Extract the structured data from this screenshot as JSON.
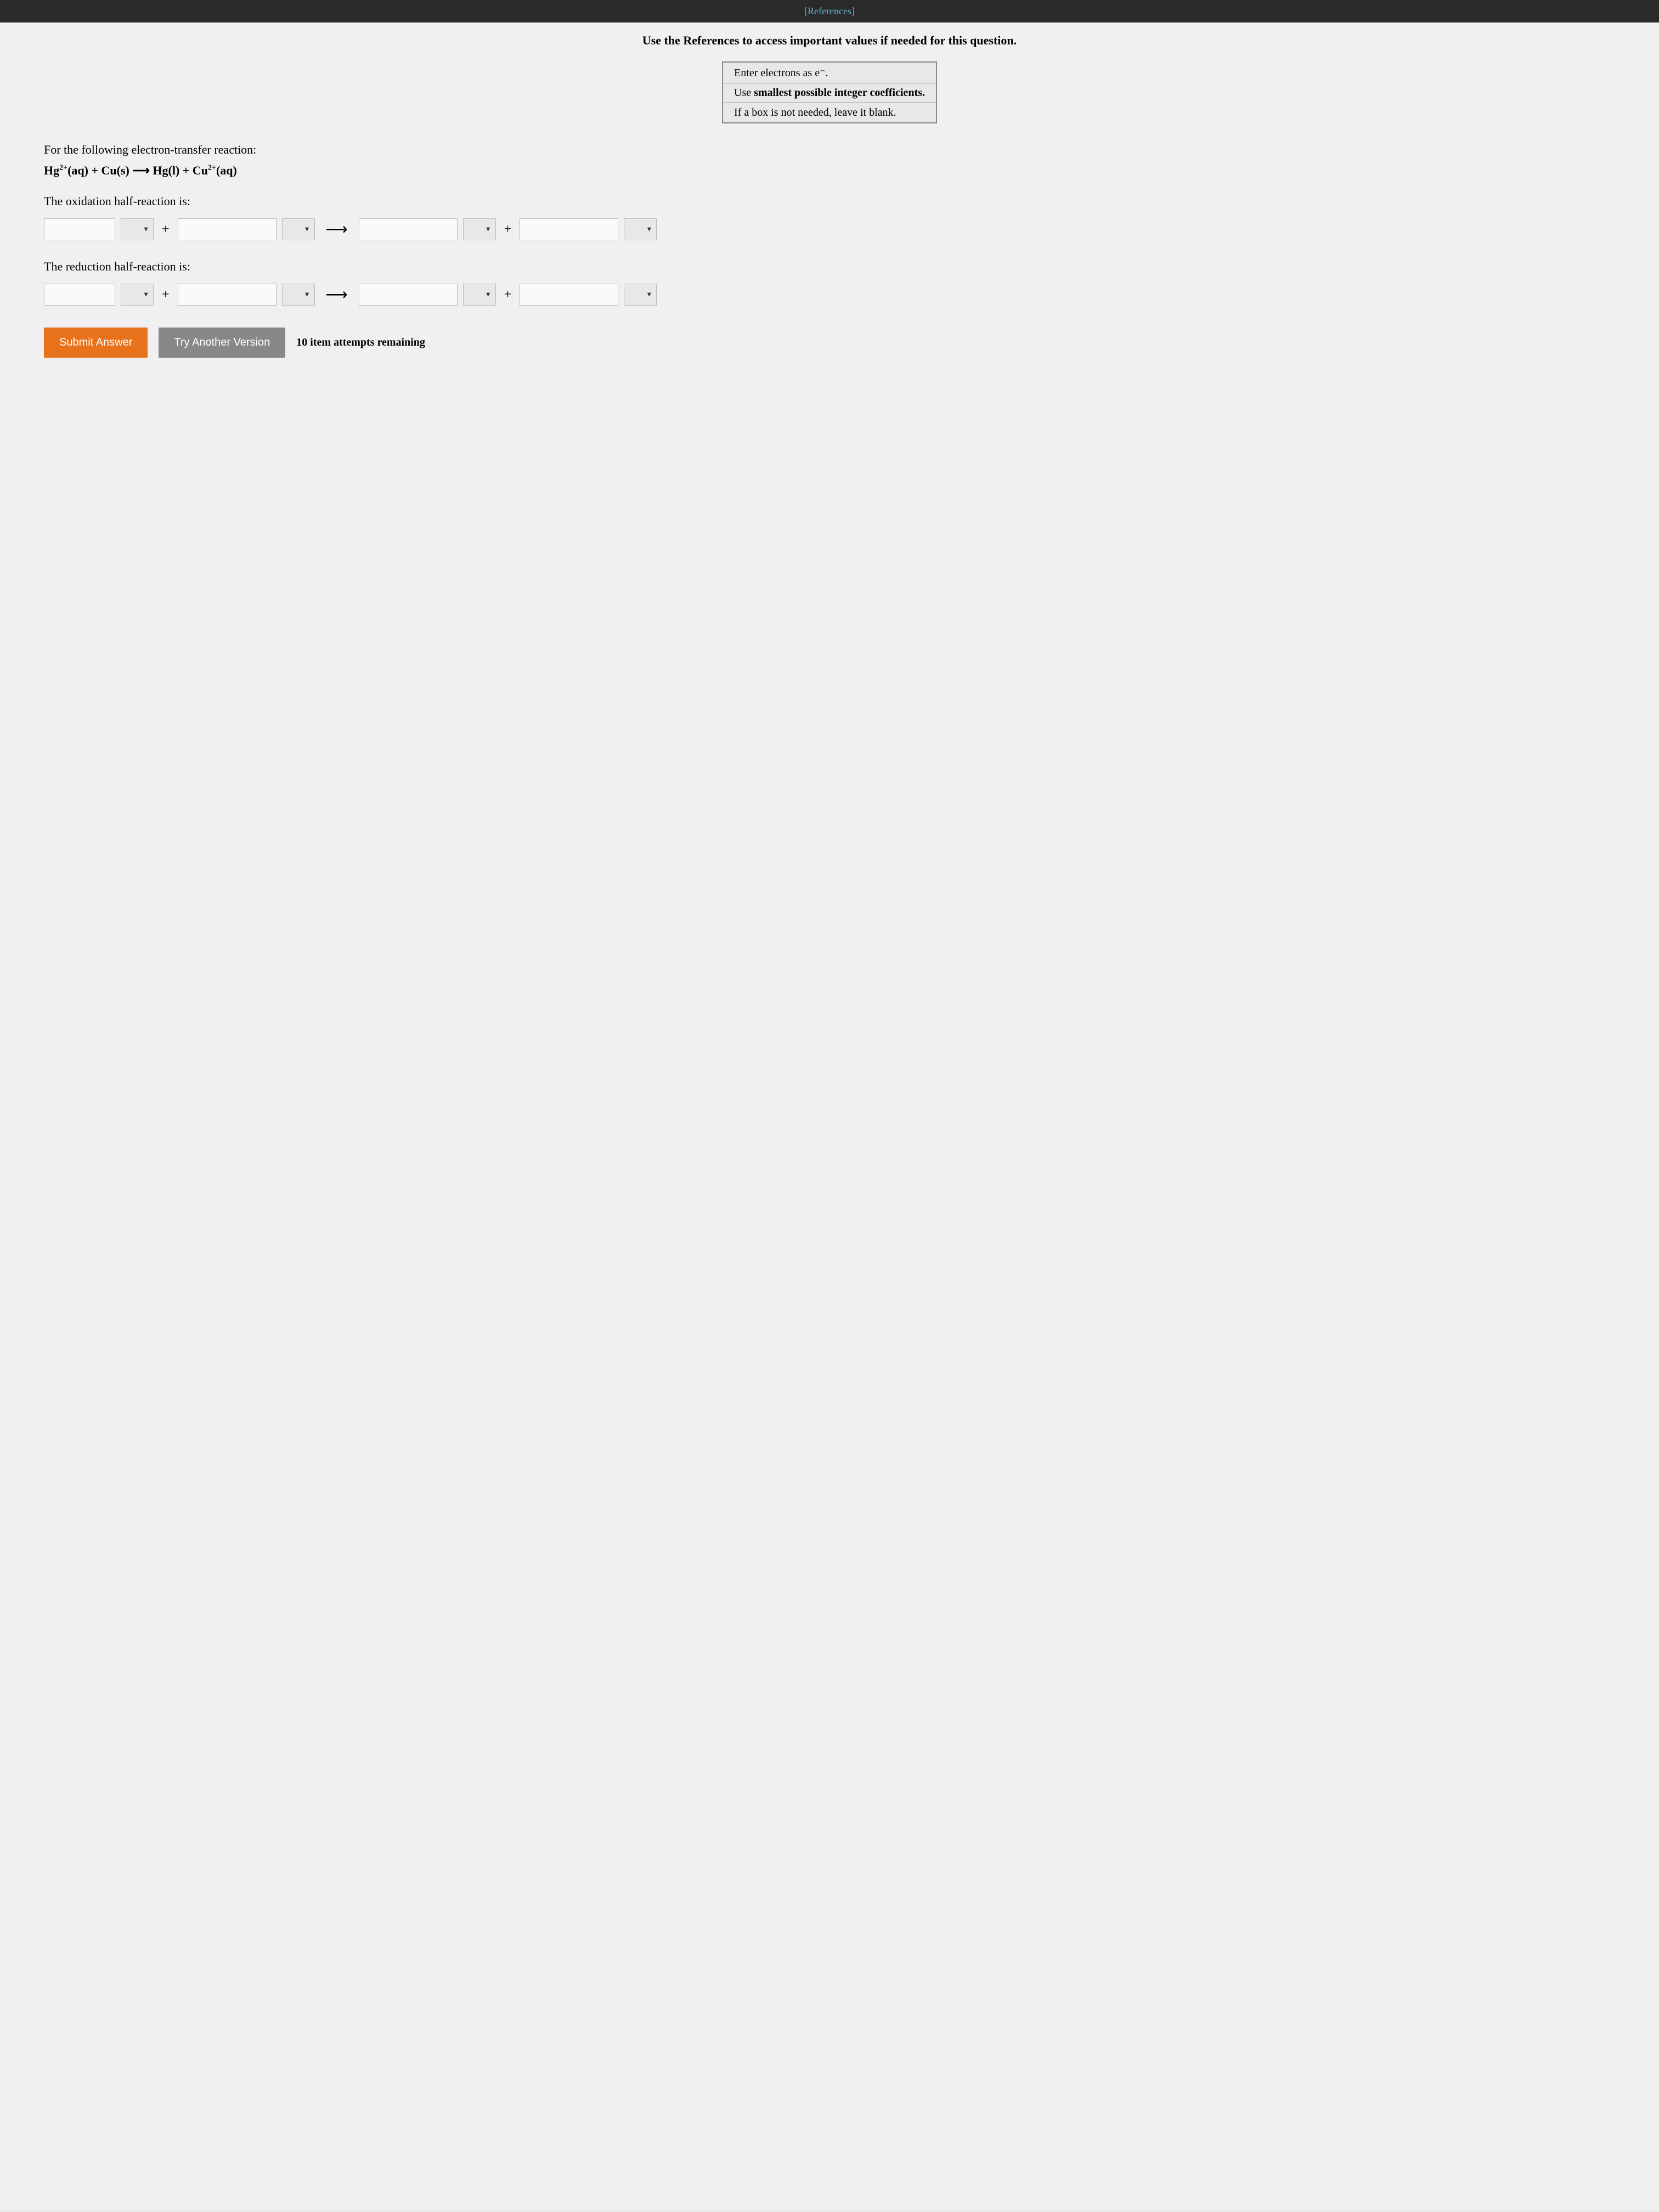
{
  "header": {
    "references_link": "[References]"
  },
  "instructions": {
    "main_instruction": "Use the References to access important values if needed for this question.",
    "box_rows": [
      "Enter electrons as e⁻.",
      "Use smallest possible integer coefficients.",
      "If a box is not needed, leave it blank."
    ]
  },
  "question": {
    "intro": "For the following electron-transfer reaction:",
    "equation_html": "Hg²⁺(aq) + Cu(s) ⟶ Hg(l) + Cu²⁺(aq)"
  },
  "oxidation": {
    "label": "The oxidation half-reaction is:"
  },
  "reduction": {
    "label": "The reduction half-reaction is:"
  },
  "operators": {
    "plus": "+",
    "arrow": "⟶"
  },
  "buttons": {
    "submit": "Submit Answer",
    "try_another": "Try Another Version",
    "attempts": "10 item attempts remaining"
  },
  "colors": {
    "header_bg": "#2a2a2a",
    "references_link": "#6bb0d0",
    "content_bg": "#f0f0f0",
    "submit_btn": "#e8711b",
    "try_another_btn": "#888888"
  }
}
